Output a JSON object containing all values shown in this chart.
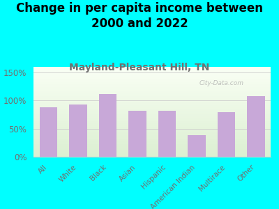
{
  "title": "Change in per capita income between\n2000 and 2022",
  "subtitle": "Mayland-Pleasant Hill, TN",
  "categories": [
    "All",
    "White",
    "Black",
    "Asian",
    "Hispanic",
    "American Indian",
    "Multirace",
    "Other"
  ],
  "values": [
    88,
    93,
    112,
    82,
    82,
    39,
    80,
    108
  ],
  "bar_color": "#c8a8d8",
  "background_color": "#00FFFF",
  "title_fontsize": 12,
  "subtitle_fontsize": 10,
  "label_color": "#707070",
  "ylim": [
    0,
    160
  ],
  "yticks": [
    0,
    50,
    100,
    150
  ],
  "ytick_labels": [
    "0%",
    "50%",
    "100%",
    "150%"
  ],
  "watermark": "City-Data.com"
}
